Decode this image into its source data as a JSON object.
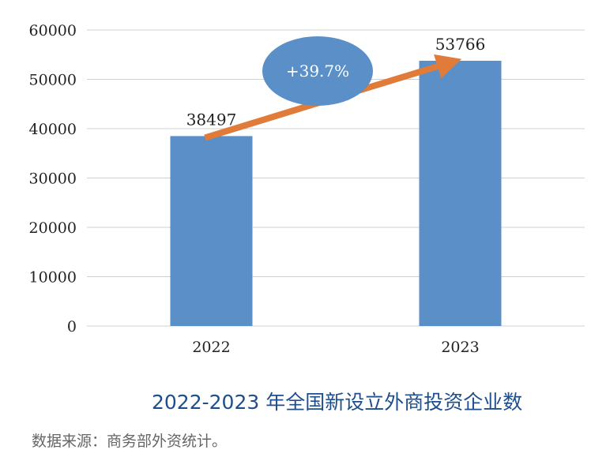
{
  "chart_data": {
    "type": "bar",
    "title": "2022-2023 年全国新设立外商投资企业数",
    "source_note": "数据来源：商务部外资统计。",
    "categories": [
      "2022",
      "2023"
    ],
    "series": [
      {
        "values": [
          38497,
          53766
        ]
      }
    ],
    "data_labels": [
      "38497",
      "53766"
    ],
    "ylim": [
      0,
      60000
    ],
    "yticks": [
      0,
      10000,
      20000,
      30000,
      40000,
      50000,
      60000
    ],
    "grid": true,
    "growth_annotation": "+39.7%",
    "colors": {
      "bar": "#5a8fc8",
      "arrow": "#e07b39",
      "ellipse": "#5a8fc8",
      "grid": "#d0d0d0",
      "title": "#1f4e8c"
    }
  }
}
